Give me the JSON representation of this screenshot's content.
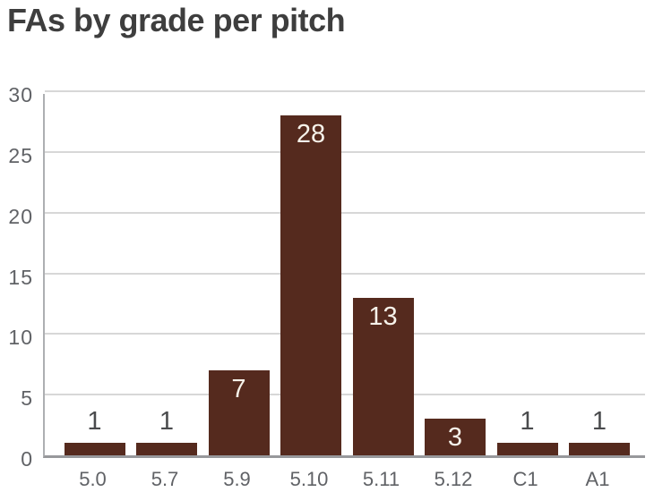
{
  "chart_data": {
    "type": "bar",
    "title": "FAs by grade per pitch",
    "categories": [
      "5.0",
      "5.7",
      "5.9",
      "5.10",
      "5.11",
      "5.12",
      "C1",
      "A1"
    ],
    "values": [
      1,
      1,
      7,
      28,
      13,
      3,
      1,
      1
    ],
    "xlabel": "",
    "ylabel": "",
    "ylim": [
      0,
      30
    ],
    "yticks": [
      0,
      5,
      10,
      15,
      20,
      25,
      30
    ],
    "grid": true,
    "legend": false,
    "value_label_placement": "inside bars when bar is tall enough, otherwise above bar",
    "colors": {
      "bar": "#552a1e",
      "value_label_inside": "#f6f2ea",
      "value_label_outside": "#4a4b4d",
      "tick_label": "#606266",
      "gridline": "#d7d7d7",
      "axis_line": "#97989b",
      "title": "#3e3e3e",
      "background": "#ffffff"
    }
  }
}
